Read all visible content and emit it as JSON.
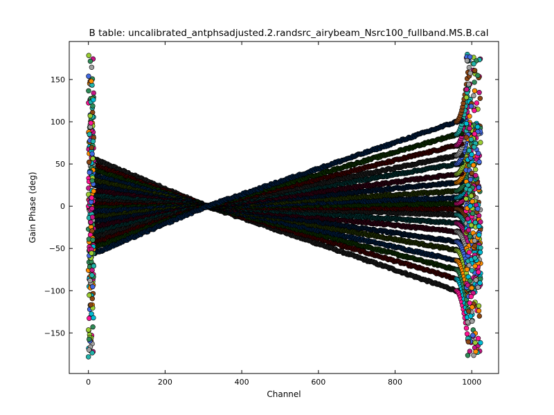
{
  "chart_data": {
    "type": "scatter",
    "title": "B table: uncalibrated_antphsadjusted.2.randsrc_airybeam_Nsrc100_fullband.MS.B.cal",
    "xlabel": "Channel",
    "ylabel": "Gain Phase (deg)",
    "xlim": [
      -50,
      1070
    ],
    "ylim": [
      -198,
      195
    ],
    "xticks": [
      0,
      200,
      400,
      600,
      800,
      1000
    ],
    "yticks": [
      -150,
      -100,
      -50,
      0,
      50,
      100,
      150
    ],
    "xtick_labels": [
      "0",
      "200",
      "400",
      "600",
      "800",
      "1000"
    ],
    "ytick_labels": [
      "−150",
      "−100",
      "−50",
      "0",
      "50",
      "100",
      "150"
    ],
    "grid": false,
    "legend": "none",
    "channels": [
      0,
      1023
    ],
    "series_description": "many antenna/polarization series; phase varies roughly linearly with channel, crossing near 0 deg at channel ~310, spanning about -100 to +100 deg at channel ~960 and -55 to +55 deg near channel 20, with wrapping scatter to +/-180 deg at both band edges",
    "crossing": {
      "channel": 310,
      "phase": 0
    },
    "series": [
      {
        "low_end_phase": 55,
        "high_end_phase": -100
      },
      {
        "low_end_phase": 48,
        "high_end_phase": -86
      },
      {
        "low_end_phase": 42,
        "high_end_phase": -75
      },
      {
        "low_end_phase": 36,
        "high_end_phase": -64
      },
      {
        "low_end_phase": 30,
        "high_end_phase": -52
      },
      {
        "low_end_phase": 24,
        "high_end_phase": -42
      },
      {
        "low_end_phase": 18,
        "high_end_phase": -30
      },
      {
        "low_end_phase": 12,
        "high_end_phase": -20
      },
      {
        "low_end_phase": 6,
        "high_end_phase": -10
      },
      {
        "low_end_phase": 2,
        "high_end_phase": -3
      },
      {
        "low_end_phase": -2,
        "high_end_phase": 3
      },
      {
        "low_end_phase": -6,
        "high_end_phase": 10
      },
      {
        "low_end_phase": -12,
        "high_end_phase": 18
      },
      {
        "low_end_phase": -18,
        "high_end_phase": 28
      },
      {
        "low_end_phase": -24,
        "high_end_phase": 38
      },
      {
        "low_end_phase": -30,
        "high_end_phase": 50
      },
      {
        "low_end_phase": -36,
        "high_end_phase": 60
      },
      {
        "low_end_phase": -42,
        "high_end_phase": 72
      },
      {
        "low_end_phase": -48,
        "high_end_phase": 85
      },
      {
        "low_end_phase": -55,
        "high_end_phase": 100
      }
    ],
    "colors": {
      "marker_palette": [
        "#1a1a1a",
        "#3a0000",
        "#0a2a00",
        "#001a3a",
        "#1d2b00",
        "#00132b",
        "#2b0010",
        "#002b2b"
      ],
      "edge_palette": [
        "#ff1493",
        "#00bcd4",
        "#2e8b57",
        "#ff8c00",
        "#9acd32",
        "#4169e1",
        "#a0a0a0",
        "#c71585",
        "#20b2aa",
        "#8b4513"
      ],
      "marker_edge": "#000000"
    }
  }
}
